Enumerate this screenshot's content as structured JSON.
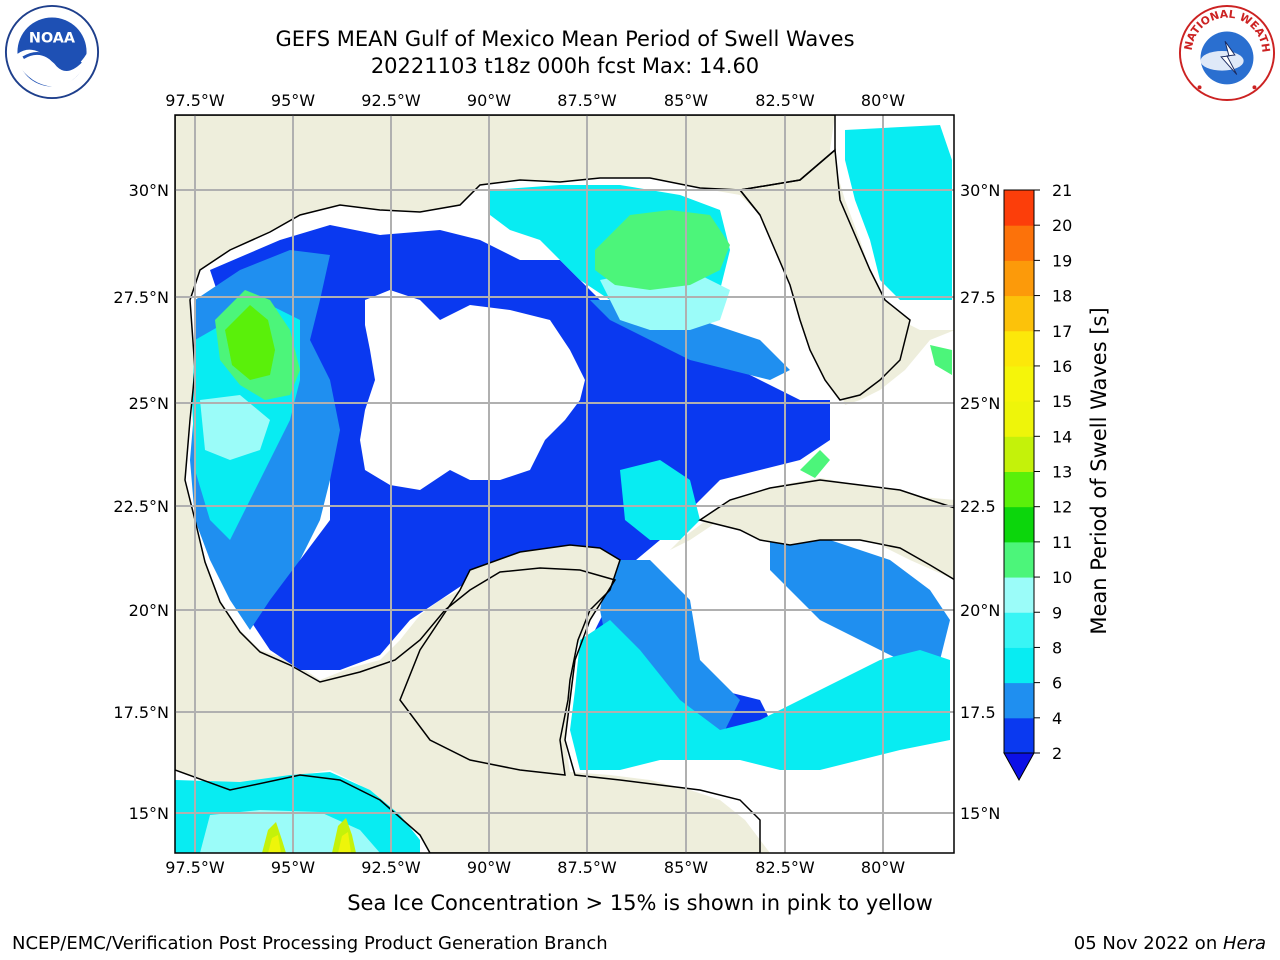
{
  "title": {
    "line1": "GEFS MEAN Gulf of Mexico Mean Period of Swell Waves",
    "line2": "20221103 t18z 000h fcst   Max: 14.60"
  },
  "axes": {
    "lon_labels": [
      "97.5°W",
      "95°W",
      "92.5°W",
      "90°W",
      "87.5°W",
      "85°W",
      "82.5°W",
      "80°W"
    ],
    "lat_labels_left": [
      "30°N",
      "27.5°N",
      "25°N",
      "22.5°N",
      "20°N",
      "17.5°N",
      "15°N"
    ],
    "lat_labels_right": [
      "30°N",
      "27.5",
      "25°N",
      "22.5",
      "20°N",
      "17.5",
      "15°N"
    ]
  },
  "colorbar": {
    "label": "Mean Period of Swell Waves [s]",
    "ticks": [
      "2",
      "4",
      "6",
      "8",
      "9",
      "10",
      "11",
      "12",
      "13",
      "14",
      "15",
      "16",
      "17",
      "18",
      "19",
      "20",
      "21"
    ],
    "colors": [
      "#0a39f0",
      "#1f8ff0",
      "#08ecf2",
      "#38f5f5",
      "#9bfcf9",
      "#4cf57a",
      "#0cd60c",
      "#5af00a",
      "#c4f20a",
      "#eef50a",
      "#f5f50a",
      "#fce80a",
      "#fcc20a",
      "#fc9a0a",
      "#fc720a",
      "#fc3e0a",
      "#fc0a0a"
    ],
    "extend_color": "#0c10e6"
  },
  "caption": "Sea Ice Concentration > 15% is shown in pink to yellow",
  "credit_left": "NCEP/EMC/Verification Post Processing Product Generation Branch",
  "credit_right": {
    "date": "05 Nov 2022 on ",
    "host": "Hera"
  },
  "logos": {
    "noaa": "noaa-logo",
    "nws": "national-weather-service-logo",
    "noaa_text": "NOAA",
    "nws_text": "NATIONAL WEATHER SERVICE"
  },
  "colors": {
    "land": "#eeeedc",
    "ocean_none": "#ffffff",
    "grid": "#b0b0b0"
  }
}
